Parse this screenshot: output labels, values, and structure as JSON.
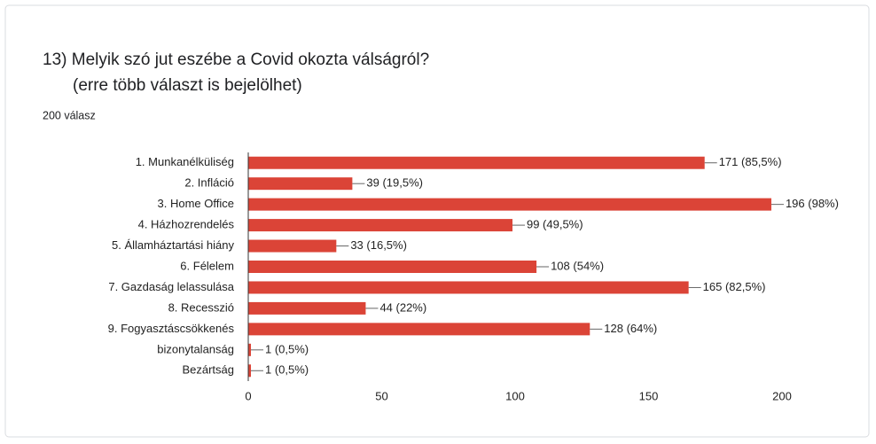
{
  "chart_data": {
    "type": "bar",
    "orientation": "horizontal",
    "title": "13)  Melyik szó jut eszébe a Covid okozta válságról?",
    "subtitle": "(erre több választ is bejelölhet)",
    "response_count": "200 válasz",
    "categories": [
      "1. Munkanélküliség",
      "2. Infláció",
      "3. Home Office",
      "4. Házhozrendelés",
      "5. Államháztartási hiány",
      "6. Félelem",
      "7. Gazdaság lelassulása",
      "8. Recesszió",
      "9. Fogyasztáscsökkenés",
      "bizonytalanság",
      "Bezártság"
    ],
    "values": [
      171,
      39,
      196,
      99,
      33,
      108,
      165,
      44,
      128,
      1,
      1
    ],
    "value_labels": [
      "171 (85,5%)",
      "39 (19,5%)",
      "196 (98%)",
      "99 (49,5%)",
      "33 (16,5%)",
      "108 (54%)",
      "165 (82,5%)",
      "44 (22%)",
      "128 (64%)",
      "1 (0,5%)",
      "1 (0,5%)"
    ],
    "color": "#db4437",
    "xlim": [
      0,
      200
    ],
    "xticks": [
      0,
      50,
      100,
      150,
      200
    ],
    "grid": false
  }
}
